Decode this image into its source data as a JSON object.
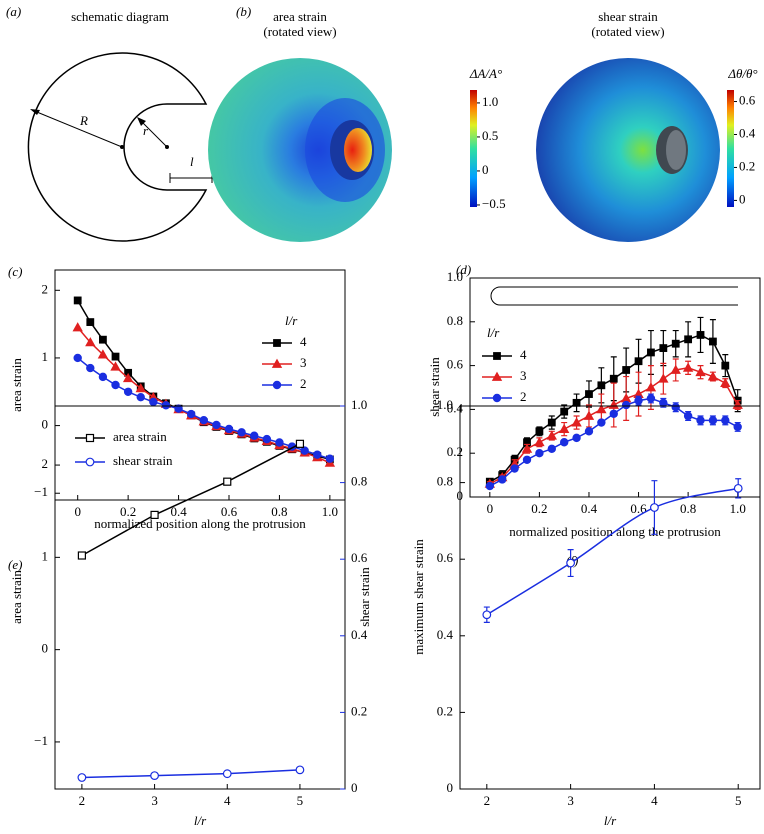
{
  "panel_a": {
    "label": "(a)",
    "title": "schematic diagram",
    "big_radius": "R",
    "small_radius": "r",
    "length": "l"
  },
  "panel_b": {
    "label": "(b)",
    "views": [
      {
        "title": "area strain",
        "subtitle": "(rotated view)",
        "colorbar_label": "ΔA/A°",
        "colorbar_lim": [
          -0.53,
          1.19
        ],
        "colorbar_ticks": [
          {
            "value": 1,
            "label": "1.0"
          },
          0.5,
          0,
          {
            "value": -0.5,
            "label": "−0.5"
          }
        ]
      },
      {
        "title": "shear strain",
        "subtitle": "(rotated view)",
        "colorbar_label": "Δθ/θ°",
        "colorbar_lim": [
          -0.04,
          0.67
        ],
        "colorbar_ticks": [
          0.6,
          0.4,
          0.2,
          0
        ]
      }
    ]
  },
  "chart_data": [
    {
      "type": "line",
      "label": "(c)",
      "x_label": "normalized position along the protrusion",
      "y_label": "area strain",
      "legend_title": "l/r",
      "x": [
        0,
        0.05,
        0.1,
        0.15,
        0.2,
        0.25,
        0.3,
        0.35,
        0.4,
        0.45,
        0.5,
        0.55,
        0.6,
        0.65,
        0.7,
        0.75,
        0.8,
        0.85,
        0.9,
        0.95,
        1
      ],
      "xlim": [
        -0.09,
        1.06
      ],
      "xticks": [
        0,
        0.2,
        0.4,
        0.6,
        0.8,
        {
          "value": 1,
          "label": "1.0"
        }
      ],
      "ylim": [
        -1.1,
        2.3
      ],
      "yticks": [
        {
          "value": -1,
          "label": "−1"
        },
        0,
        1,
        2
      ],
      "series": [
        {
          "name": "4",
          "color": "#000000",
          "marker": "square",
          "values": [
            1.85,
            1.53,
            1.27,
            1.02,
            0.78,
            0.58,
            0.43,
            0.33,
            0.25,
            0.15,
            0.05,
            -0.02,
            -0.08,
            -0.13,
            -0.19,
            -0.24,
            -0.3,
            -0.35,
            -0.4,
            -0.45,
            -0.5
          ]
        },
        {
          "name": "3",
          "color": "#e02020",
          "marker": "triangle",
          "values": [
            1.45,
            1.23,
            1.05,
            0.87,
            0.7,
            0.55,
            0.42,
            0.32,
            0.24,
            0.15,
            0.06,
            -0.01,
            -0.07,
            -0.12,
            -0.18,
            -0.23,
            -0.29,
            -0.34,
            -0.4,
            -0.47,
            -0.55
          ]
        },
        {
          "name": "2",
          "color": "#1a2ee0",
          "marker": "circle",
          "values": [
            1.0,
            0.85,
            0.72,
            0.6,
            0.5,
            0.42,
            0.35,
            0.3,
            0.25,
            0.17,
            0.08,
            0.01,
            -0.05,
            -0.1,
            -0.15,
            -0.2,
            -0.25,
            -0.31,
            -0.37,
            -0.43,
            -0.49
          ]
        }
      ]
    },
    {
      "type": "line",
      "label": "(d)",
      "x_label": "normalized position along the protrusion",
      "y_label": "shear strain",
      "legend_title": "l/r",
      "x": [
        0,
        0.05,
        0.1,
        0.15,
        0.2,
        0.25,
        0.3,
        0.35,
        0.4,
        0.45,
        0.5,
        0.55,
        0.6,
        0.65,
        0.7,
        0.75,
        0.8,
        0.85,
        0.9,
        0.95,
        1
      ],
      "xlim": [
        -0.08,
        1.09
      ],
      "xticks": [
        0,
        0.2,
        0.4,
        0.6,
        0.8,
        {
          "value": 1,
          "label": "1.0"
        }
      ],
      "ylim": [
        0,
        1
      ],
      "yticks": [
        0,
        0.2,
        0.4,
        0.6,
        0.8,
        {
          "value": 1,
          "label": "1.0"
        }
      ],
      "series": [
        {
          "name": "4",
          "color": "#000000",
          "marker": "square",
          "values": [
            0.07,
            0.1,
            0.17,
            0.25,
            0.3,
            0.34,
            0.39,
            0.43,
            0.47,
            0.51,
            0.54,
            0.58,
            0.62,
            0.66,
            0.68,
            0.7,
            0.72,
            0.74,
            0.71,
            0.6,
            0.44
          ],
          "errors": [
            0.01,
            0.02,
            0.02,
            0.02,
            0.02,
            0.03,
            0.03,
            0.04,
            0.06,
            0.08,
            0.1,
            0.1,
            0.1,
            0.1,
            0.08,
            0.06,
            0.08,
            0.08,
            0.1,
            0.05,
            0.05
          ]
        },
        {
          "name": "3",
          "color": "#e02020",
          "marker": "triangle",
          "values": [
            0.06,
            0.09,
            0.15,
            0.22,
            0.25,
            0.28,
            0.31,
            0.34,
            0.37,
            0.4,
            0.42,
            0.45,
            0.47,
            0.5,
            0.54,
            0.58,
            0.59,
            0.57,
            0.55,
            0.52,
            0.42
          ],
          "errors": [
            0.01,
            0.01,
            0.02,
            0.02,
            0.02,
            0.02,
            0.03,
            0.03,
            0.05,
            0.07,
            0.1,
            0.1,
            0.1,
            0.1,
            0.07,
            0.05,
            0.03,
            0.03,
            0.02,
            0.02,
            0.02
          ]
        },
        {
          "name": "2",
          "color": "#1a2ee0",
          "marker": "circle",
          "values": [
            0.05,
            0.08,
            0.13,
            0.17,
            0.2,
            0.22,
            0.25,
            0.27,
            0.3,
            0.34,
            0.38,
            0.42,
            0.44,
            0.45,
            0.43,
            0.41,
            0.37,
            0.35,
            0.35,
            0.35,
            0.32
          ],
          "errors": [
            0.01,
            0.01,
            0.01,
            0.01,
            0.01,
            0.01,
            0.01,
            0.01,
            0.01,
            0.01,
            0.01,
            0.01,
            0.02,
            0.02,
            0.02,
            0.02,
            0.02,
            0.02,
            0.02,
            0.02,
            0.02
          ]
        }
      ]
    },
    {
      "type": "line",
      "label": "(e)",
      "x_label": "l/r",
      "y_label": "area strain",
      "y2_label": "shear strain",
      "x": [
        2,
        3,
        4,
        5
      ],
      "xlim": [
        1.63,
        5.62
      ],
      "xticks": [
        2,
        3,
        4,
        5
      ],
      "ylim": [
        -1.51,
        2.64
      ],
      "yticks": [
        {
          "value": -1,
          "label": "−1"
        },
        0,
        1,
        2
      ],
      "y2lim": [
        0,
        1
      ],
      "y2ticks": [
        0,
        0.2,
        0.4,
        0.6,
        0.8,
        {
          "value": 1,
          "label": "1.0"
        }
      ],
      "series": [
        {
          "name": "area strain",
          "color": "#000000",
          "marker": "square-open",
          "values": [
            1.02,
            1.46,
            1.82,
            2.23
          ]
        },
        {
          "name": "shear strain",
          "color": "#1a2ee0",
          "marker": "circle-open",
          "axis": "y2",
          "values": [
            0.03,
            0.035,
            0.04,
            0.05
          ]
        }
      ]
    },
    {
      "type": "line",
      "label": "(f)",
      "x_label": "l/r",
      "y_label": "maximum shear strain",
      "smooth": true,
      "x": [
        2,
        3,
        4,
        5
      ],
      "xlim": [
        1.68,
        5.26
      ],
      "xticks": [
        2,
        3,
        4,
        5
      ],
      "ylim": [
        0,
        1
      ],
      "yticks": [
        0,
        0.2,
        0.4,
        0.6,
        0.8,
        {
          "value": 1,
          "label": "1.0"
        }
      ],
      "series": [
        {
          "color": "#1a2ee0",
          "marker": "circle-open",
          "values": [
            0.455,
            0.59,
            0.735,
            0.785
          ],
          "errors": [
            0.02,
            0.035,
            0.07,
            0.025
          ]
        }
      ]
    }
  ]
}
